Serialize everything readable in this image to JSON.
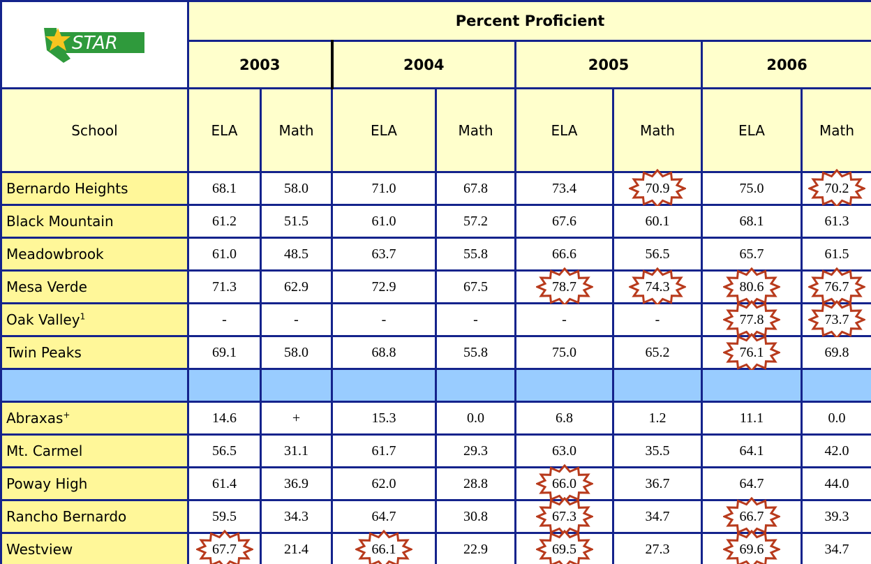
{
  "header": {
    "logo_text": "STAR",
    "title": "Percent Proficient",
    "years": [
      "2003",
      "2004",
      "2005",
      "2006"
    ],
    "school_label": "School",
    "subjects": [
      "ELA",
      "Math",
      "ELA",
      "Math",
      "ELA",
      "Math",
      "ELA",
      "Math"
    ]
  },
  "table": {
    "rows": [
      {
        "school": "Bernardo Heights",
        "values": [
          "68.1",
          "58.0",
          "71.0",
          "67.8",
          "73.4",
          "70.9",
          "75.0",
          "70.2"
        ],
        "starred": [
          5,
          7
        ]
      },
      {
        "school": "Black Mountain",
        "values": [
          "61.2",
          "51.5",
          "61.0",
          "57.2",
          "67.6",
          "60.1",
          "68.1",
          "61.3"
        ],
        "starred": []
      },
      {
        "school": "Meadowbrook",
        "values": [
          "61.0",
          "48.5",
          "63.7",
          "55.8",
          "66.6",
          "56.5",
          "65.7",
          "61.5"
        ],
        "starred": []
      },
      {
        "school": "Mesa Verde",
        "values": [
          "71.3",
          "62.9",
          "72.9",
          "67.5",
          "78.7",
          "74.3",
          "80.6",
          "76.7"
        ],
        "starred": [
          4,
          5,
          6,
          7
        ]
      },
      {
        "school": "Oak Valley",
        "sup": "1",
        "values": [
          "-",
          "-",
          "-",
          "-",
          "-",
          "-",
          "77.8",
          "73.7"
        ],
        "starred": [
          6,
          7
        ]
      },
      {
        "school": "Twin Peaks",
        "values": [
          "69.1",
          "58.0",
          "68.8",
          "55.8",
          "75.0",
          "65.2",
          "76.1",
          "69.8"
        ],
        "starred": [
          6
        ]
      },
      {
        "separator": true
      },
      {
        "school": "Abraxas",
        "sup": "+",
        "values": [
          "14.6",
          "+",
          "15.3",
          "0.0",
          "6.8",
          "1.2",
          "11.1",
          "0.0"
        ],
        "starred": []
      },
      {
        "school": "Mt. Carmel",
        "values": [
          "56.5",
          "31.1",
          "61.7",
          "29.3",
          "63.0",
          "35.5",
          "64.1",
          "42.0"
        ],
        "starred": []
      },
      {
        "school": "Poway High",
        "values": [
          "61.4",
          "36.9",
          "62.0",
          "28.8",
          "66.0",
          "36.7",
          "64.7",
          "44.0"
        ],
        "starred": [
          4
        ]
      },
      {
        "school": "Rancho Bernardo",
        "values": [
          "59.5",
          "34.3",
          "64.7",
          "30.8",
          "67.3",
          "34.7",
          "66.7",
          "39.3"
        ],
        "starred": [
          4,
          6
        ]
      },
      {
        "school": "Westview",
        "values": [
          "67.7",
          "21.4",
          "66.1",
          "22.9",
          "69.5",
          "27.3",
          "69.6",
          "34.7"
        ],
        "starred": [
          0,
          2,
          4,
          6
        ]
      }
    ]
  }
}
